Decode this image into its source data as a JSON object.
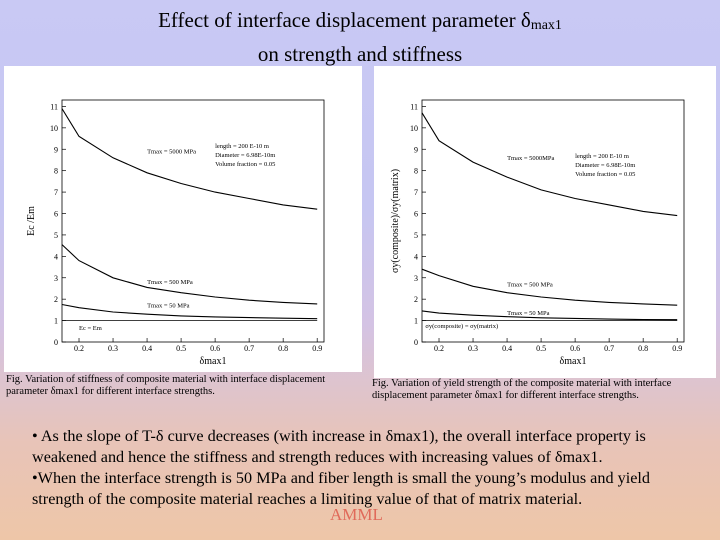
{
  "title": {
    "line1": "Effect of interface displacement parameter δ",
    "line1_sub": "max1",
    "line2": "on strength and stiffness"
  },
  "chart_data": [
    {
      "type": "line",
      "xlabel": "δmax1",
      "ylabel": "Ec /Em",
      "xlim": [
        0.15,
        0.92
      ],
      "ylim": [
        0,
        11.3
      ],
      "xticks": [
        0.2,
        0.3,
        0.4,
        0.5,
        0.6,
        0.7,
        0.8,
        0.9
      ],
      "yticks": [
        0,
        1,
        2,
        3,
        4,
        5,
        6,
        7,
        8,
        9,
        10,
        11
      ],
      "grid": false,
      "series": [
        {
          "name": "Tmax = 5000 MPa",
          "x": [
            0.15,
            0.2,
            0.3,
            0.4,
            0.5,
            0.6,
            0.7,
            0.8,
            0.9
          ],
          "y": [
            10.9,
            9.6,
            8.6,
            7.9,
            7.4,
            7.0,
            6.7,
            6.4,
            6.2
          ]
        },
        {
          "name": "Tmax = 500 MPa",
          "x": [
            0.15,
            0.2,
            0.3,
            0.4,
            0.5,
            0.6,
            0.7,
            0.8,
            0.9
          ],
          "y": [
            4.55,
            3.8,
            3.0,
            2.55,
            2.3,
            2.1,
            1.95,
            1.85,
            1.78
          ]
        },
        {
          "name": "Tmax = 50 MPa",
          "x": [
            0.15,
            0.2,
            0.3,
            0.4,
            0.5,
            0.6,
            0.7,
            0.8,
            0.9
          ],
          "y": [
            1.75,
            1.6,
            1.4,
            1.3,
            1.22,
            1.17,
            1.14,
            1.11,
            1.09
          ]
        },
        {
          "name": "Ec = Em",
          "x": [
            0.15,
            0.9
          ],
          "y": [
            1.0,
            1.0
          ]
        }
      ],
      "annotations": {
        "t5000": "Tmax = 5000 MPa",
        "t500": "Tmax = 500 MPa",
        "t50": "Tmax = 50 MPa",
        "eq": "Ec = Em",
        "length": "length = 200 E-10 m",
        "diameter": "Diameter = 6.98E-10m",
        "volume": "Volume fraction = 0.05"
      }
    },
    {
      "type": "line",
      "xlabel": "δmax1",
      "ylabel": "σy(composite)/σy(matrix)",
      "xlim": [
        0.15,
        0.92
      ],
      "ylim": [
        0,
        11.3
      ],
      "xticks": [
        0.2,
        0.3,
        0.4,
        0.5,
        0.6,
        0.7,
        0.8,
        0.9
      ],
      "yticks": [
        0,
        1,
        2,
        3,
        4,
        5,
        6,
        7,
        8,
        9,
        10,
        11
      ],
      "grid": false,
      "series": [
        {
          "name": "Tmax = 5000 MPa",
          "x": [
            0.15,
            0.2,
            0.3,
            0.4,
            0.5,
            0.6,
            0.7,
            0.8,
            0.9
          ],
          "y": [
            10.7,
            9.4,
            8.4,
            7.7,
            7.1,
            6.7,
            6.4,
            6.1,
            5.9
          ]
        },
        {
          "name": "Tmax = 500 MPa",
          "x": [
            0.15,
            0.2,
            0.3,
            0.4,
            0.5,
            0.6,
            0.7,
            0.8,
            0.9
          ],
          "y": [
            3.4,
            3.1,
            2.6,
            2.3,
            2.1,
            1.95,
            1.85,
            1.78,
            1.72
          ]
        },
        {
          "name": "Tmax = 50 MPa",
          "x": [
            0.15,
            0.2,
            0.3,
            0.4,
            0.5,
            0.6,
            0.7,
            0.8,
            0.9
          ],
          "y": [
            1.45,
            1.35,
            1.25,
            1.18,
            1.13,
            1.1,
            1.07,
            1.05,
            1.04
          ]
        },
        {
          "name": "σy(composite) = σy(matrix)",
          "x": [
            0.15,
            0.9
          ],
          "y": [
            1.0,
            1.0
          ]
        }
      ],
      "annotations": {
        "t5000": "Tmax = 5000MPa",
        "t500": "Tmax = 500 MPa",
        "t50": "Tmax = 50 MPa",
        "eq": "σy(composite) = σy(matrix)",
        "length": "length = 200 E-10 m",
        "diameter": "Diameter = 6.98E-10m",
        "volume": "Volume fraction = 0.05"
      }
    }
  ],
  "captions": {
    "left": "Fig. Variation of stiffness of composite material with interface displacement parameter δmax1 for different interface strengths.",
    "right": "Fig. Variation of yield strength of the composite material with interface displacement parameter δmax1 for different interface strengths."
  },
  "body": {
    "p1": "• As the slope of T-δ curve decreases (with increase in δmax1), the overall interface property is weakened and hence the stiffness and strength reduces with increasing values of δmax1.",
    "p2": "•When the interface strength is 50 MPa and fiber length is small the young’s modulus and yield strength of the composite material reaches a limiting value of that of matrix material."
  },
  "watermark": "AMML",
  "colors": {
    "line": "#000000",
    "panel": "#ffffff"
  }
}
